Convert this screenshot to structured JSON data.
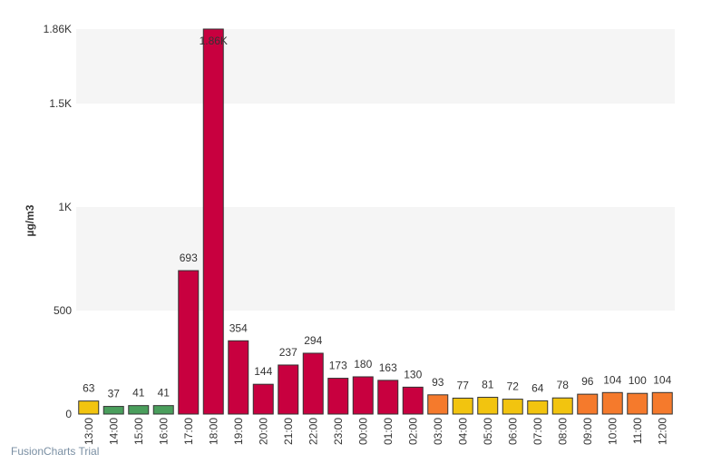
{
  "chart_data": {
    "type": "bar",
    "ylabel": "µg/m3",
    "ylim": [
      0,
      1860
    ],
    "y_ticks": [
      {
        "value": 0,
        "label": "0"
      },
      {
        "value": 500,
        "label": "500"
      },
      {
        "value": 1000,
        "label": "1K"
      },
      {
        "value": 1500,
        "label": "1.5K"
      },
      {
        "value": 1860,
        "label": "1.86K"
      }
    ],
    "categories": [
      "13:00",
      "14:00",
      "15:00",
      "16:00",
      "17:00",
      "18:00",
      "19:00",
      "20:00",
      "21:00",
      "22:00",
      "23:00",
      "00:00",
      "01:00",
      "02:00",
      "03:00",
      "04:00",
      "05:00",
      "06:00",
      "07:00",
      "08:00",
      "09:00",
      "10:00",
      "11:00",
      "12:00"
    ],
    "values": [
      63,
      37,
      41,
      41,
      693,
      1860,
      354,
      144,
      237,
      294,
      173,
      180,
      163,
      130,
      93,
      77,
      81,
      72,
      64,
      78,
      96,
      104,
      100,
      104
    ],
    "value_labels": [
      "63",
      "37",
      "41",
      "41",
      "693",
      "1.86K",
      "354",
      "144",
      "237",
      "294",
      "173",
      "180",
      "163",
      "130",
      "93",
      "77",
      "81",
      "72",
      "64",
      "78",
      "96",
      "104",
      "100",
      "104"
    ],
    "colors": [
      "#f2c40f",
      "#4a9e5c",
      "#4a9e5c",
      "#4a9e5c",
      "#c8003f",
      "#c8003f",
      "#c8003f",
      "#c8003f",
      "#c8003f",
      "#c8003f",
      "#c8003f",
      "#c8003f",
      "#c8003f",
      "#c8003f",
      "#f57a2c",
      "#f2c40f",
      "#f2c40f",
      "#f2c40f",
      "#f2c40f",
      "#f2c40f",
      "#f57a2c",
      "#f57a2c",
      "#f57a2c",
      "#f57a2c"
    ],
    "grid": true
  },
  "watermark": "FusionCharts Trial"
}
